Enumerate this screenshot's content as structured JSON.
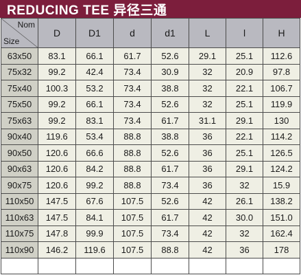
{
  "title": "REDUCING TEE 异径三通",
  "corner": {
    "top": "Nom",
    "bottom": "Size"
  },
  "columns": [
    "D",
    "D1",
    "d",
    "d1",
    "L",
    "l",
    "H"
  ],
  "rows": [
    [
      "63x50",
      "83.1",
      "66.1",
      "61.7",
      "52.6",
      "29.1",
      "25.1",
      "112.6"
    ],
    [
      "75x32",
      "99.2",
      "42.4",
      "73.4",
      "30.9",
      "32",
      "20.9",
      "97.8"
    ],
    [
      "75x40",
      "100.3",
      "53.2",
      "73.4",
      "38.8",
      "32",
      "22.1",
      "106.7"
    ],
    [
      "75x50",
      "99.2",
      "66.1",
      "73.4",
      "52.6",
      "32",
      "25.1",
      "119.9"
    ],
    [
      "75x63",
      "99.2",
      "83.1",
      "73.4",
      "61.7",
      "31.1",
      "29.1",
      "130"
    ],
    [
      "90x40",
      "119.6",
      "53.4",
      "88.8",
      "38.8",
      "36",
      "22.1",
      "114.2"
    ],
    [
      "90x50",
      "120.6",
      "66.6",
      "88.8",
      "52.6",
      "36",
      "25.1",
      "126.5"
    ],
    [
      "90x63",
      "120.6",
      "84.2",
      "88.8",
      "61.7",
      "36",
      "29.1",
      "124.2"
    ],
    [
      "90x75",
      "120.6",
      "99.2",
      "88.8",
      "73.4",
      "36",
      "32",
      "15.9"
    ],
    [
      "110x50",
      "147.5",
      "67.6",
      "107.5",
      "52.6",
      "42",
      "26.1",
      "138.2"
    ],
    [
      "110x63",
      "147.5",
      "84.1",
      "107.5",
      "61.7",
      "42",
      "30.0",
      "151.0"
    ],
    [
      "110x75",
      "147.8",
      "99.9",
      "107.5",
      "73.4",
      "42",
      "32",
      "162.4"
    ],
    [
      "110x90",
      "146.2",
      "119.6",
      "107.5",
      "88.8",
      "42",
      "36",
      "178"
    ]
  ],
  "colors": {
    "title_bg": "#7c1e3c",
    "header_bg": "#b9b9c0",
    "cell_bg": "#efefe4",
    "size_bg": "#d0d0c6",
    "border": "#4a4a4a"
  }
}
